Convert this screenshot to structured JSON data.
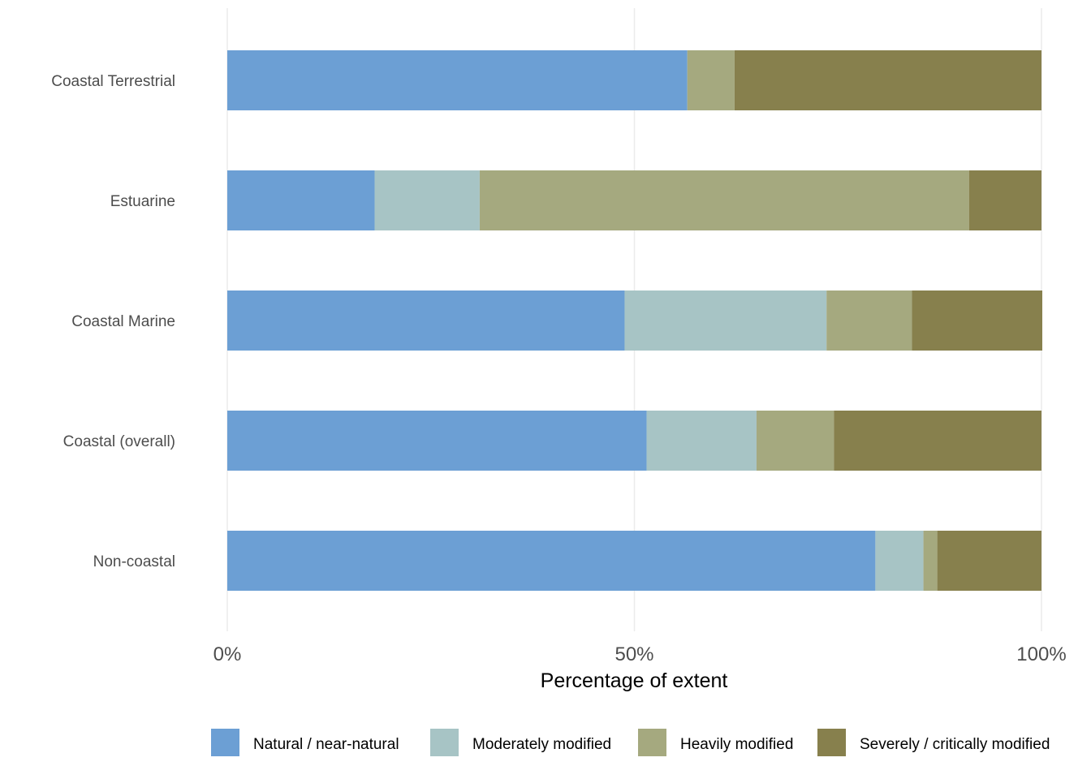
{
  "chart_data": {
    "type": "bar",
    "orientation": "horizontal",
    "stacked": true,
    "title": "",
    "xlabel": "Percentage of extent",
    "ylabel": "",
    "xlim": [
      0,
      100
    ],
    "x_ticks": [
      {
        "value": 0,
        "label": "0%"
      },
      {
        "value": 50,
        "label": "50%"
      },
      {
        "value": 100,
        "label": "100%"
      }
    ],
    "grid": true,
    "legend_position": "bottom",
    "categories": [
      "Coastal Terrestrial",
      "Estuarine",
      "Coastal Marine",
      "Coastal (overall)",
      "Non-coastal"
    ],
    "series": [
      {
        "name": "Natural / near-natural",
        "color": "#6c9fd4",
        "values": [
          56.5,
          18.1,
          48.8,
          51.5,
          79.6
        ]
      },
      {
        "name": "Moderately modified",
        "color": "#a7c4c5",
        "values": [
          0.0,
          12.9,
          24.8,
          13.5,
          5.9
        ]
      },
      {
        "name": "Heavily modified",
        "color": "#a5a97f",
        "values": [
          5.8,
          60.1,
          10.5,
          9.5,
          1.7
        ]
      },
      {
        "name": "Severely / critically modified",
        "color": "#87804d",
        "values": [
          37.7,
          8.9,
          16.0,
          25.5,
          12.8
        ]
      }
    ]
  }
}
